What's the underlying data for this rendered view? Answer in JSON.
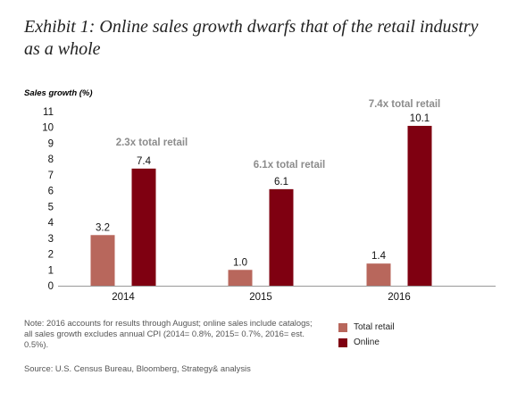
{
  "title": "Exhibit 1: Online sales growth dwarfs that of the retail industry as a whole",
  "note": "Note: 2016 accounts for results through August; online sales include catalogs; all sales growth excludes annual CPI (2014= 0.8%, 2015= 0.7%, 2016= est. 0.5%).",
  "source": "Source: U.S. Census Bureau, Bloomberg, Strategy& analysis",
  "colors": {
    "total_retail": "#b8675c",
    "online": "#7f0011",
    "annotation": "#8c8c8c"
  },
  "chart_data": {
    "type": "bar",
    "ylabel": "Sales growth (%)",
    "xlabel": "",
    "ylim": [
      0,
      11
    ],
    "yticks": [
      0,
      1,
      2,
      3,
      4,
      5,
      6,
      7,
      8,
      9,
      10,
      11
    ],
    "grid": false,
    "legend_position": "bottom-right",
    "categories": [
      "2014",
      "2015",
      "2016"
    ],
    "series": [
      {
        "name": "Total retail",
        "values": [
          3.2,
          1.0,
          1.4
        ],
        "labels": [
          "3.2",
          "1.0",
          "1.4"
        ]
      },
      {
        "name": "Online",
        "values": [
          7.4,
          6.1,
          10.1
        ],
        "labels": [
          "7.4",
          "6.1",
          "10.1"
        ]
      }
    ],
    "annotations": [
      "2.3x total retail",
      "6.1x total retail",
      "7.4x total retail"
    ]
  }
}
